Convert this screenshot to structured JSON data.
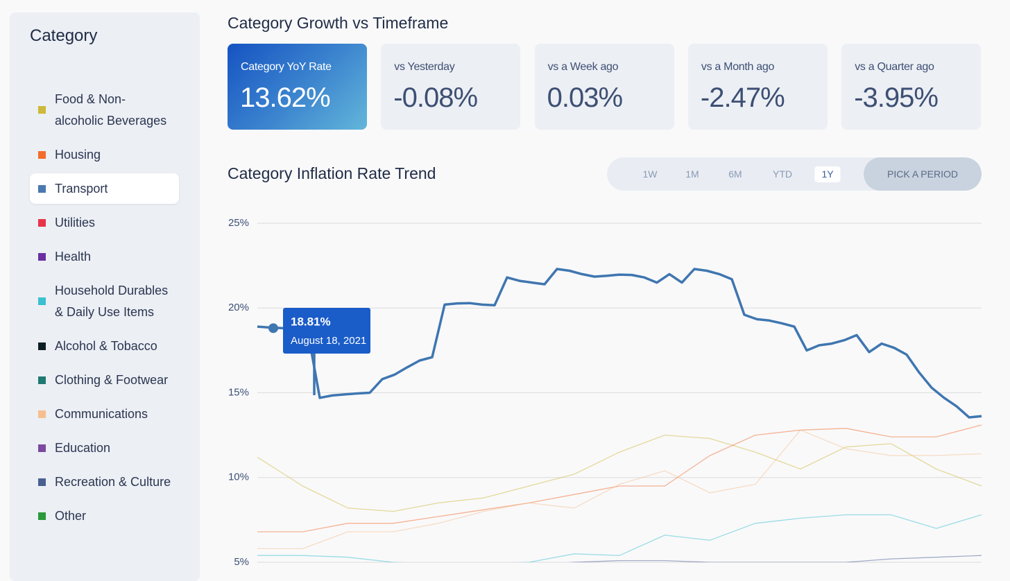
{
  "sidebar": {
    "title": "Category",
    "items": [
      {
        "name": "Food & Non-alcoholic Beverages",
        "color": "#cdb93a"
      },
      {
        "name": "Housing",
        "color": "#f36c2c"
      },
      {
        "name": "Transport",
        "color": "#4a78b0",
        "active": true
      },
      {
        "name": "Utilities",
        "color": "#e8334a"
      },
      {
        "name": "Health",
        "color": "#6a2fa0"
      },
      {
        "name": "Household Durables & Daily Use Items",
        "color": "#3cbfd0"
      },
      {
        "name": "Alcohol & Tobacco",
        "color": "#0d1f24"
      },
      {
        "name": "Clothing & Footwear",
        "color": "#1f7a72"
      },
      {
        "name": "Communications",
        "color": "#f5bf8e"
      },
      {
        "name": "Education",
        "color": "#7b4aa0"
      },
      {
        "name": "Recreation & Culture",
        "color": "#4a6090"
      },
      {
        "name": "Other",
        "color": "#2a9a3a"
      }
    ]
  },
  "header": {
    "title": "Category Growth vs Timeframe"
  },
  "cards": [
    {
      "label": "Category YoY Rate",
      "value": "13.62%",
      "highlight": true
    },
    {
      "label": "vs Yesterday",
      "value": "-0.08%"
    },
    {
      "label": "vs a Week ago",
      "value": "0.03%"
    },
    {
      "label": "vs a Month ago",
      "value": "-2.47%"
    },
    {
      "label": "vs a Quarter ago",
      "value": "-3.95%"
    }
  ],
  "trend": {
    "title": "Category Inflation Rate Trend",
    "periods": [
      {
        "label": "1W"
      },
      {
        "label": "1M"
      },
      {
        "label": "6M"
      },
      {
        "label": "YTD"
      },
      {
        "label": "1Y",
        "active": true
      }
    ],
    "pick": "PICK A PERIOD"
  },
  "chart_data": {
    "type": "line",
    "ylim": [
      5,
      25
    ],
    "yticks": [
      {
        "value": 5,
        "label": "5%"
      },
      {
        "value": 10,
        "label": "10%"
      },
      {
        "value": 15,
        "label": "15%"
      },
      {
        "value": 20,
        "label": "20%"
      },
      {
        "value": 25,
        "label": "25%"
      }
    ],
    "grid": true,
    "series": [
      {
        "color": "#cdb93a",
        "values": [
          11.2,
          9.5,
          8.2,
          8.0,
          8.5,
          8.8,
          9.5,
          10.2,
          11.5,
          12.5,
          12.3,
          11.5,
          10.5,
          11.8,
          12.0,
          10.5,
          9.5
        ]
      },
      {
        "color": "#f36c2c",
        "values": [
          6.8,
          6.8,
          7.3,
          7.3,
          7.7,
          8.1,
          8.5,
          9.0,
          9.5,
          9.5,
          11.3,
          12.5,
          12.8,
          12.9,
          12.4,
          12.4,
          13.1
        ]
      },
      {
        "color": "#f5bf8e",
        "values": [
          5.8,
          5.8,
          6.8,
          6.8,
          7.3,
          8.0,
          8.5,
          8.2,
          9.6,
          10.4,
          9.1,
          9.6,
          12.8,
          11.7,
          11.3,
          11.3,
          11.4
        ]
      },
      {
        "color": "#3cbfd0",
        "values": [
          5.4,
          5.4,
          5.3,
          5.0,
          4.9,
          4.9,
          5.0,
          5.5,
          5.4,
          6.6,
          6.3,
          7.3,
          7.6,
          7.8,
          7.8,
          7.0,
          7.8
        ]
      },
      {
        "color": "#4a6090",
        "values": [
          4.8,
          4.8,
          4.8,
          4.8,
          4.8,
          4.8,
          4.8,
          5.0,
          5.1,
          5.1,
          5.0,
          5.0,
          5.0,
          5.0,
          5.2,
          5.3,
          5.4
        ]
      },
      {
        "color": "#3f76b0",
        "highlight": true,
        "values": [
          18.9,
          18.85,
          18.81,
          18.8,
          18.77,
          14.7,
          14.84,
          14.9,
          14.96,
          15.0,
          15.8,
          16.07,
          16.5,
          16.9,
          17.1,
          20.2,
          20.27,
          20.29,
          20.2,
          20.16,
          21.8,
          21.6,
          21.5,
          21.4,
          22.3,
          22.2,
          22.0,
          21.85,
          21.9,
          21.97,
          21.95,
          21.8,
          21.5,
          22.0,
          21.5,
          22.3,
          22.2,
          22.0,
          21.7,
          19.6,
          19.34,
          19.26,
          19.1,
          18.9,
          17.5,
          17.8,
          17.9,
          18.1,
          18.4,
          17.4,
          17.9,
          17.65,
          17.25,
          16.2,
          15.3,
          14.7,
          14.2,
          13.55,
          13.62
        ]
      }
    ],
    "tooltip": {
      "value": 18.81,
      "label": "18.81%",
      "date": "August 18, 2021"
    }
  }
}
